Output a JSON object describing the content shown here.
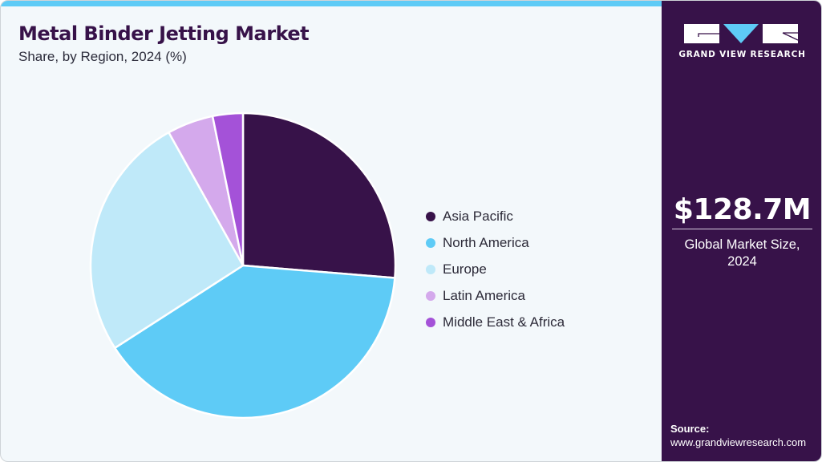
{
  "header": {
    "title": "Metal Binder Jetting Market",
    "subtitle": "Share, by Region, 2024 (%)"
  },
  "brand": {
    "name": "GRAND VIEW RESEARCH",
    "accent_color": "#5ecbf6",
    "panel_color": "#371249"
  },
  "summary": {
    "value": "$128.7M",
    "label_line1": "Global Market Size,",
    "label_line2": "2024"
  },
  "source": {
    "label": "Source:",
    "url": "www.grandviewresearch.com"
  },
  "legend": {
    "items": [
      {
        "label": "Asia Pacific",
        "color": "#371249"
      },
      {
        "label": "North America",
        "color": "#5ecbf6"
      },
      {
        "label": "Europe",
        "color": "#bfe9f9"
      },
      {
        "label": "Latin America",
        "color": "#d4a9ec"
      },
      {
        "label": "Middle East & Africa",
        "color": "#a452d8"
      }
    ]
  },
  "chart_data": {
    "type": "pie",
    "title": "Metal Binder Jetting Market",
    "subtitle": "Share, by Region, 2024 (%)",
    "categories": [
      "Asia Pacific",
      "North America",
      "Europe",
      "Latin America",
      "Middle East & Africa"
    ],
    "values": [
      26.3,
      39.6,
      26.0,
      4.9,
      3.2
    ],
    "colors": [
      "#371249",
      "#5ecbf6",
      "#bfe9f9",
      "#d4a9ec",
      "#a452d8"
    ],
    "start_angle_deg": 0,
    "direction": "clockwise",
    "legend_position": "right",
    "data_labels": false
  }
}
